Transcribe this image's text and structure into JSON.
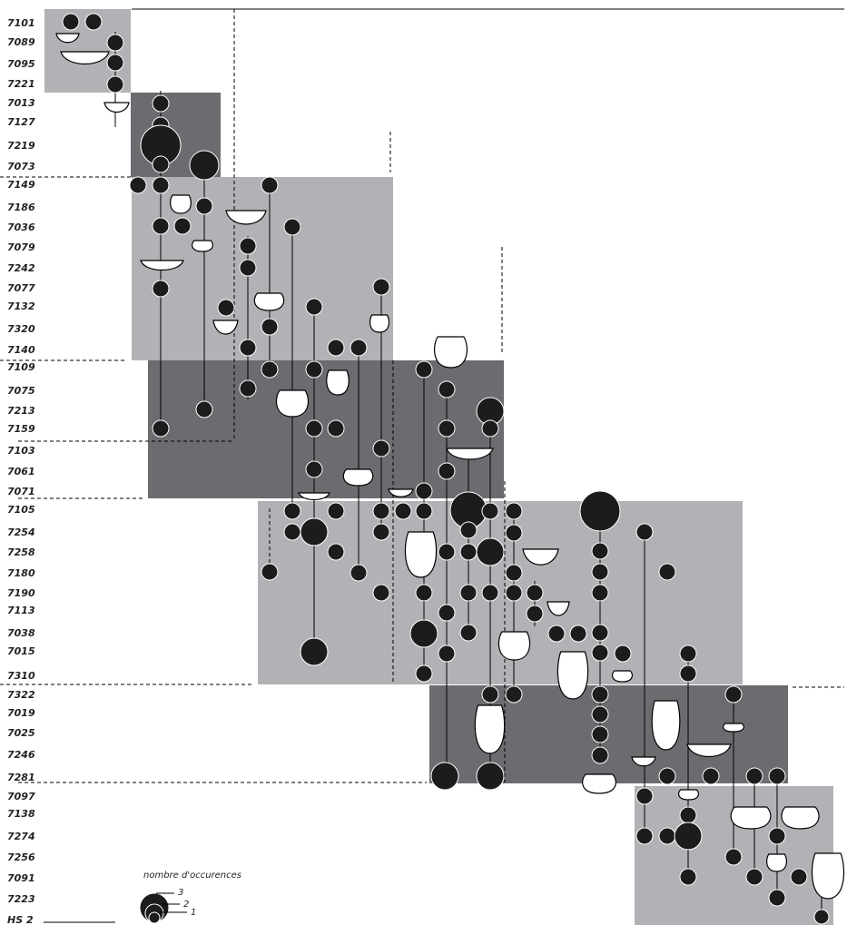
{
  "rows": [
    "7101",
    "7089",
    "7095",
    "7221",
    "7013",
    "7127",
    "7219",
    "7073",
    "7149",
    "7186",
    "7036",
    "7079",
    "7242",
    "7077",
    "7132",
    "7320",
    "7140",
    "7109",
    "7075",
    "7213",
    "7159",
    "7103",
    "7061",
    "7071",
    "7105",
    "7254",
    "7258",
    "7180",
    "7190",
    "7113",
    "7038",
    "7015",
    "7310",
    "7322",
    "7019",
    "7025",
    "7246",
    "7281",
    "7097",
    "7138",
    "7274",
    "7256",
    "7091",
    "7223",
    "HS 2"
  ],
  "legend": {
    "title": "nombre d'occurences",
    "sizes": [
      3,
      2,
      1
    ]
  }
}
